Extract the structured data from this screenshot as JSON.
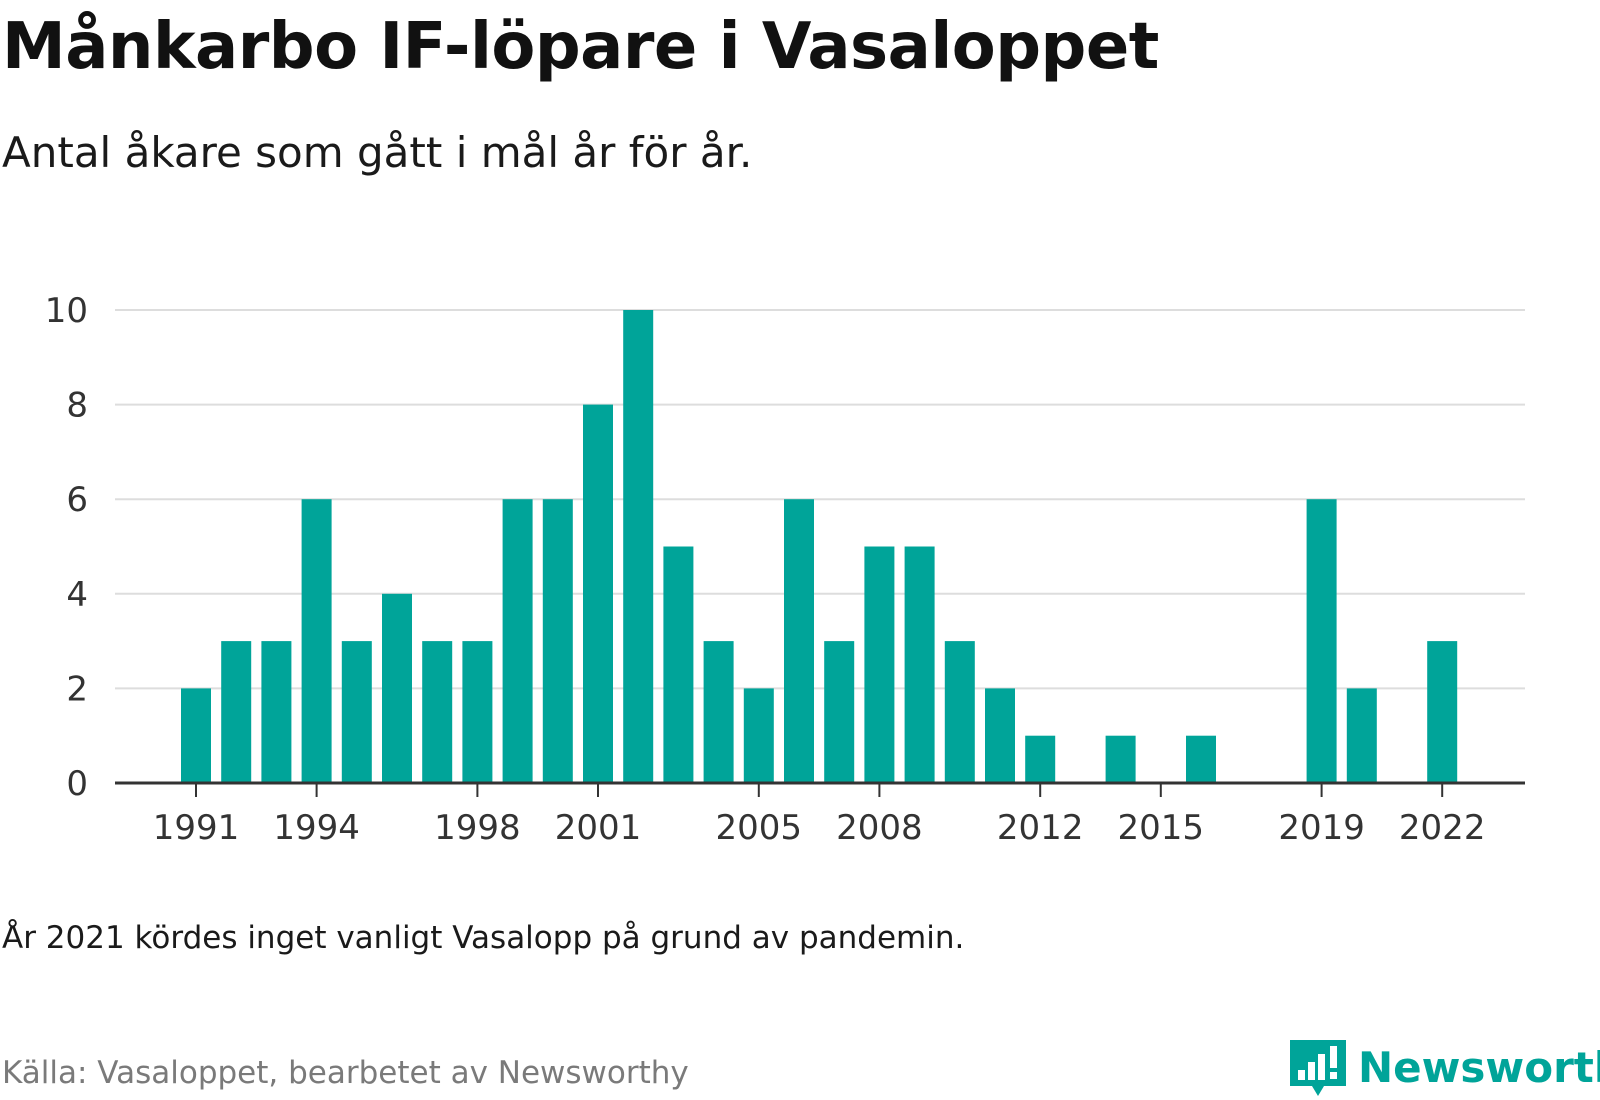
{
  "title": "Månkarbo IF-löpare i Vasaloppet",
  "subtitle": "Antal åkare som gått i mål år för år.",
  "note": "År 2021 kördes inget vanligt Vasalopp på grund av pandemin.",
  "source": "Källa: Vasaloppet, bearbetet av Newsworthy",
  "logo": {
    "text": "Newsworthy",
    "icon": "newsworthy-logo-icon",
    "color": "#00a499"
  },
  "chart_data": {
    "type": "bar",
    "bar_color": "#00a499",
    "x": [
      1991,
      1992,
      1993,
      1994,
      1995,
      1996,
      1997,
      1998,
      1999,
      2000,
      2001,
      2002,
      2003,
      2004,
      2005,
      2006,
      2007,
      2008,
      2009,
      2010,
      2011,
      2012,
      2013,
      2014,
      2015,
      2016,
      2017,
      2018,
      2019,
      2020,
      2021,
      2022
    ],
    "values": [
      2,
      3,
      3,
      6,
      3,
      4,
      3,
      3,
      6,
      6,
      8,
      10,
      5,
      3,
      2,
      6,
      3,
      5,
      5,
      3,
      2,
      1,
      0,
      1,
      0,
      1,
      0,
      0,
      6,
      2,
      0,
      3
    ],
    "x_ticks": [
      1991,
      1994,
      1998,
      2001,
      2005,
      2008,
      2012,
      2015,
      2019,
      2022
    ],
    "y_ticks": [
      0,
      2,
      4,
      6,
      8,
      10
    ],
    "ylim": [
      0,
      10
    ],
    "grid": true,
    "legend": "none"
  }
}
